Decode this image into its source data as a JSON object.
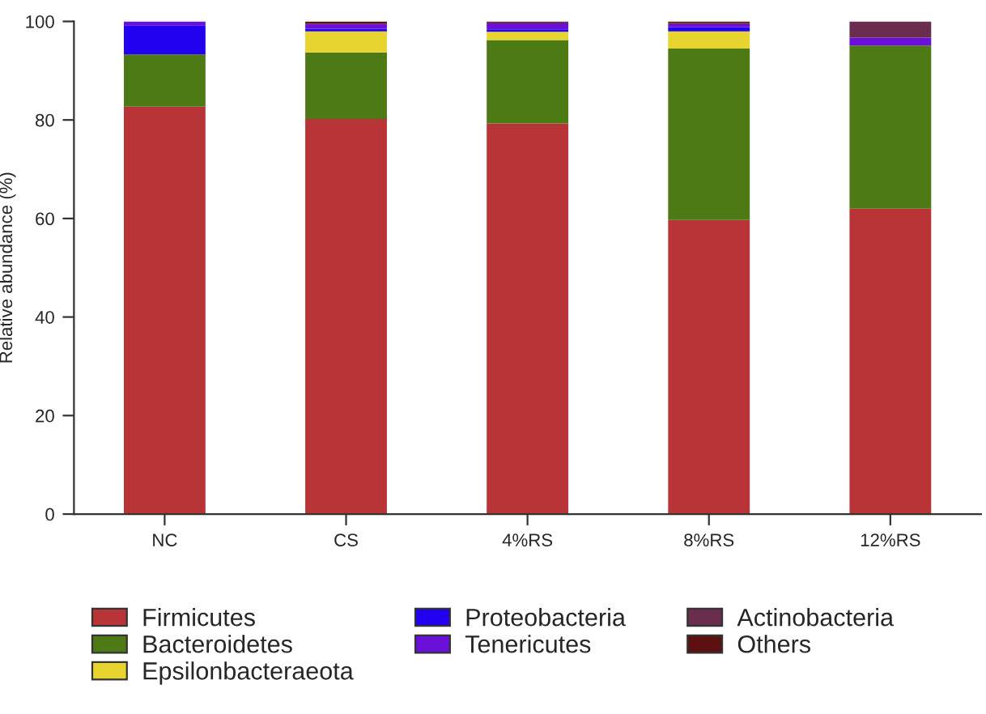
{
  "chart_data": {
    "type": "bar",
    "stacked": true,
    "ylabel": "Relative abundance (%)",
    "categories": [
      "NC",
      "CS",
      "4%RS",
      "8%RS",
      "12%RS"
    ],
    "ylim": [
      0,
      100
    ],
    "yticks": [
      0,
      20,
      40,
      60,
      80,
      100
    ],
    "grid": false,
    "legend": "bottom",
    "series": [
      {
        "name": "Firmicutes",
        "color": "#b93436",
        "values": [
          82.7,
          80.2,
          79.3,
          59.7,
          62.0
        ]
      },
      {
        "name": "Bacteroidetes",
        "color": "#4e7a16",
        "values": [
          10.6,
          13.5,
          16.9,
          34.8,
          33.1
        ]
      },
      {
        "name": "Epsilonbacteraeota",
        "color": "#e8d42e",
        "values": [
          null,
          4.3,
          1.7,
          3.5,
          null
        ]
      },
      {
        "name": "Proteobacteria",
        "color": "#2200f0",
        "values": [
          5.9,
          0.5,
          0.5,
          0.8,
          null
        ]
      },
      {
        "name": "Tenericutes",
        "color": "#6a10d8",
        "values": [
          0.8,
          1.0,
          1.2,
          0.6,
          1.6
        ]
      },
      {
        "name": "Actinobacteria",
        "color": "#6a2d4e",
        "values": [
          null,
          null,
          0.4,
          0.3,
          3.3
        ]
      },
      {
        "name": "Others",
        "color": "#5c1010",
        "values": [
          null,
          0.5,
          null,
          0.3,
          null
        ]
      }
    ]
  }
}
